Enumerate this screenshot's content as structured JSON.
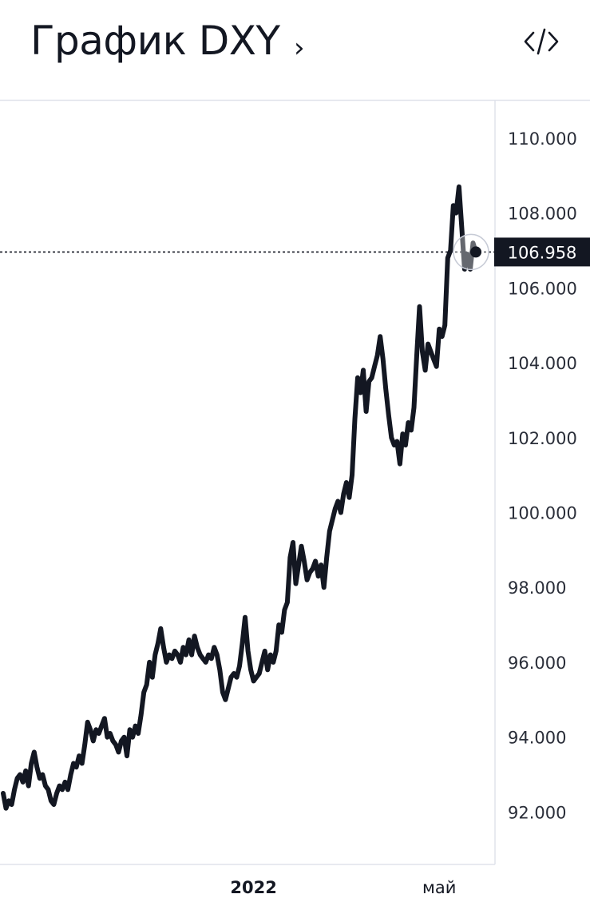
{
  "header": {
    "title": "График DXY",
    "chevron_icon": "chevron-right-icon",
    "embed_icon": "code-embed-icon"
  },
  "colors": {
    "line": "#131722",
    "grid_border": "#e0e3eb",
    "last_price_bg": "#131722",
    "last_price_text": "#ffffff"
  },
  "chart_data": {
    "type": "line",
    "ylim": [
      90.6,
      111.0
    ],
    "yticks": [
      "110.000",
      "108.000",
      "106.000",
      "104.000",
      "102.000",
      "100.000",
      "98.000",
      "96.000",
      "94.000",
      "92.000"
    ],
    "ytick_values": [
      110,
      108,
      106,
      104,
      102,
      100,
      98,
      96,
      94,
      92
    ],
    "xticks": [
      "2022",
      "май"
    ],
    "xtick_index": [
      89,
      155
    ],
    "last_value": "106.958",
    "last_value_num": 106.958,
    "series": [
      {
        "values": [
          92.5,
          92.1,
          92.3,
          92.2,
          92.6,
          92.9,
          93.0,
          92.8,
          93.1,
          92.7,
          93.3,
          93.6,
          93.2,
          92.9,
          93.0,
          92.7,
          92.6,
          92.3,
          92.2,
          92.5,
          92.7,
          92.6,
          92.8,
          92.6,
          93.0,
          93.3,
          93.2,
          93.5,
          93.3,
          93.8,
          94.4,
          94.2,
          93.9,
          94.2,
          94.1,
          94.3,
          94.5,
          94.0,
          94.1,
          93.9,
          93.8,
          93.6,
          93.9,
          94.0,
          93.5,
          94.2,
          94.0,
          94.3,
          94.1,
          94.6,
          95.2,
          95.4,
          96.0,
          95.6,
          96.2,
          96.5,
          96.9,
          96.4,
          96.0,
          96.2,
          96.1,
          96.3,
          96.2,
          96.0,
          96.4,
          96.2,
          96.6,
          96.2,
          96.7,
          96.4,
          96.2,
          96.1,
          96.0,
          96.2,
          96.1,
          96.4,
          96.2,
          95.8,
          95.2,
          95.0,
          95.3,
          95.6,
          95.7,
          95.6,
          95.9,
          96.5,
          97.2,
          96.3,
          95.8,
          95.5,
          95.6,
          95.7,
          96.0,
          96.3,
          95.8,
          96.2,
          96.0,
          96.3,
          97.0,
          96.8,
          97.4,
          97.6,
          98.8,
          99.2,
          98.1,
          98.6,
          99.1,
          98.7,
          98.2,
          98.4,
          98.5,
          98.7,
          98.3,
          98.6,
          98.0,
          98.8,
          99.5,
          99.8,
          100.1,
          100.3,
          100.0,
          100.5,
          100.8,
          100.4,
          101.0,
          102.5,
          103.6,
          103.2,
          103.8,
          102.7,
          103.5,
          103.6,
          103.9,
          104.2,
          104.7,
          104.1,
          103.3,
          102.6,
          102.0,
          101.8,
          101.9,
          101.3,
          102.1,
          101.8,
          102.4,
          102.2,
          102.8,
          104.2,
          105.5,
          104.3,
          103.8,
          104.5,
          104.3,
          104.1,
          103.9,
          104.9,
          104.7,
          105.0,
          106.8,
          107.0,
          108.2,
          108.0,
          108.7,
          107.6,
          106.5,
          106.9,
          106.5,
          107.2,
          106.958
        ]
      }
    ]
  }
}
